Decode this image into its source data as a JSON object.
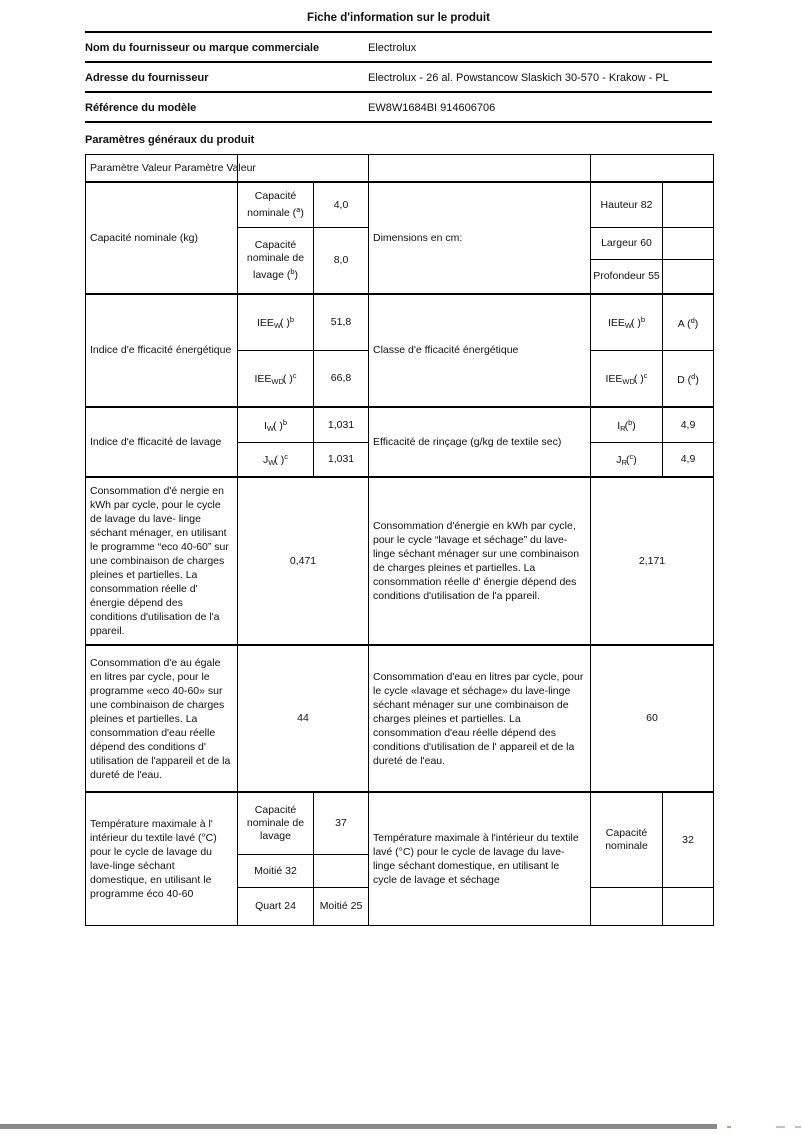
{
  "title": "Fiche d'information sur le produit",
  "supplier": {
    "label": "Nom du fournisseur ou marque commerciale",
    "value": "Electrolux"
  },
  "address": {
    "label": "Adresse du fournisseur",
    "value": "Electrolux - 26 al. Powstancow Slaskich 30-570 - Krakow - PL"
  },
  "model": {
    "label": "Référence du modèle",
    "value": "EW8W1684BI 914606706"
  },
  "section_heading": "Paramètres généraux du produit",
  "table": {
    "header_text": "Paramètre Valeur Paramètre Valeur",
    "capacity_row": {
      "label": "Capacité nominale (kg)",
      "sub1_label": {
        "text": "Capacité nominale (",
        "sup": "a",
        "tail": ")"
      },
      "sub1_value": "4,0",
      "sub2_label": {
        "text": "Capacité nominale de lavage (",
        "sup": "b",
        "tail": ")"
      },
      "sub2_value": "8,0",
      "mid_label": "Dimensions en cm:",
      "dim_height": "Hauteur 82",
      "dim_width": "Largeur 60",
      "dim_depth": "Profondeur 55"
    },
    "energy_index_row": {
      "label": "Indice d'e fficacité énergétique",
      "sub1_label": {
        "base": "IEE",
        "sub": "W",
        "mid": "( )",
        "sup": "b"
      },
      "sub1_value": "51,8",
      "sub2_label": {
        "base": "IEE",
        "sub": "WD",
        "mid": "( )",
        "sup": "c"
      },
      "sub2_value": "66,8",
      "mid_label": "Classe d'e fficacité énergétique",
      "right1_label": {
        "base": "IEE",
        "sub": "W",
        "mid": "( )",
        "sup": "b"
      },
      "right1_value": {
        "text": "A (",
        "sup": "d",
        "tail": ")"
      },
      "right2_label": {
        "base": "IEE",
        "sub": "WD",
        "mid": "( )",
        "sup": "c"
      },
      "right2_value": {
        "text": "D (",
        "sup": "d",
        "tail": ")"
      }
    },
    "wash_index_row": {
      "label": "Indice d'e fficacité de lavage",
      "sub1_label": {
        "base": "I",
        "sub": "W",
        "mid": "( )",
        "sup": "b"
      },
      "sub1_value": "1,031",
      "sub2_label": {
        "base": "J",
        "sub": "W",
        "mid": "( )",
        "sup": "c"
      },
      "sub2_value": "1,031",
      "mid_label": "Efficacité de rinçage (g/kg de textile sec)",
      "right1_label": {
        "base": "I",
        "sub": "R",
        "mid": "(",
        "sup": "b",
        "tail": ")"
      },
      "right1_value": "4,9",
      "right2_label": {
        "base": "J",
        "sub": "R",
        "mid": "(",
        "sup": "c",
        "tail": ")"
      },
      "right2_value": "4,9"
    },
    "energy_consumption_row": {
      "left_text": "Consommation d'é nergie en kWh par cycle, pour le cycle de lavage du lave- linge séchant ménager, en utilisant le programme “eco 40-60” sur une combinaison de charges pleines et partielles. La consommation réelle d' énergie dépend des conditions d'utilisation de l'a ppareil.",
      "left_value": "0,471",
      "right_text": "Consommation d'énergie en kWh par cycle, pour le cycle “lavage et séchage” du lave-linge séchant ménager sur une combinaison de charges pleines et partielles. La consommation réelle d' énergie dépend des conditions d'utilisation de l'a ppareil.",
      "right_value": "2,171"
    },
    "water_consumption_row": {
      "left_text": "Consommation d'e au égale en litres par cycle, pour le programme «eco 40-60» sur une combinaison de charges pleines et partielles. La consommation d'eau réelle dépend des conditions d' utilisation de l'appareil et de la dureté de l'eau.",
      "left_value": "44",
      "right_text": "Consommation d'eau en litres par cycle, pour le cycle «lavage et séchage» du lave-linge séchant ménager sur une combinaison de charges pleines et partielles. La consommation d'eau réelle dépend des conditions d'utilisation de l' appareil et de la dureté de l'eau.",
      "right_value": "60"
    },
    "temperature_row": {
      "label": "Température maximale à l' intérieur du textile lavé (°C) pour le cycle de lavage du lave-linge séchant domestique, en utilisant le programme éco 40-60",
      "sub1_label": "Capacité nominale de lavage",
      "sub1_value": "37",
      "sub2_label": "Moitié 32",
      "sub3_label": "Quart 24",
      "sub3_value": "Moitié 25",
      "mid_text": "Température maximale à l'intérieur du textile lavé (°C) pour le cycle de lavage du lave-linge séchant domestique, en utilisant le cycle de lavage et séchage",
      "right_label": "Capacité nominale",
      "right_value": "32"
    }
  },
  "colors": {
    "page_background": "#ffffff",
    "border": "#000000",
    "scrollbar": "#8a8a8a"
  }
}
